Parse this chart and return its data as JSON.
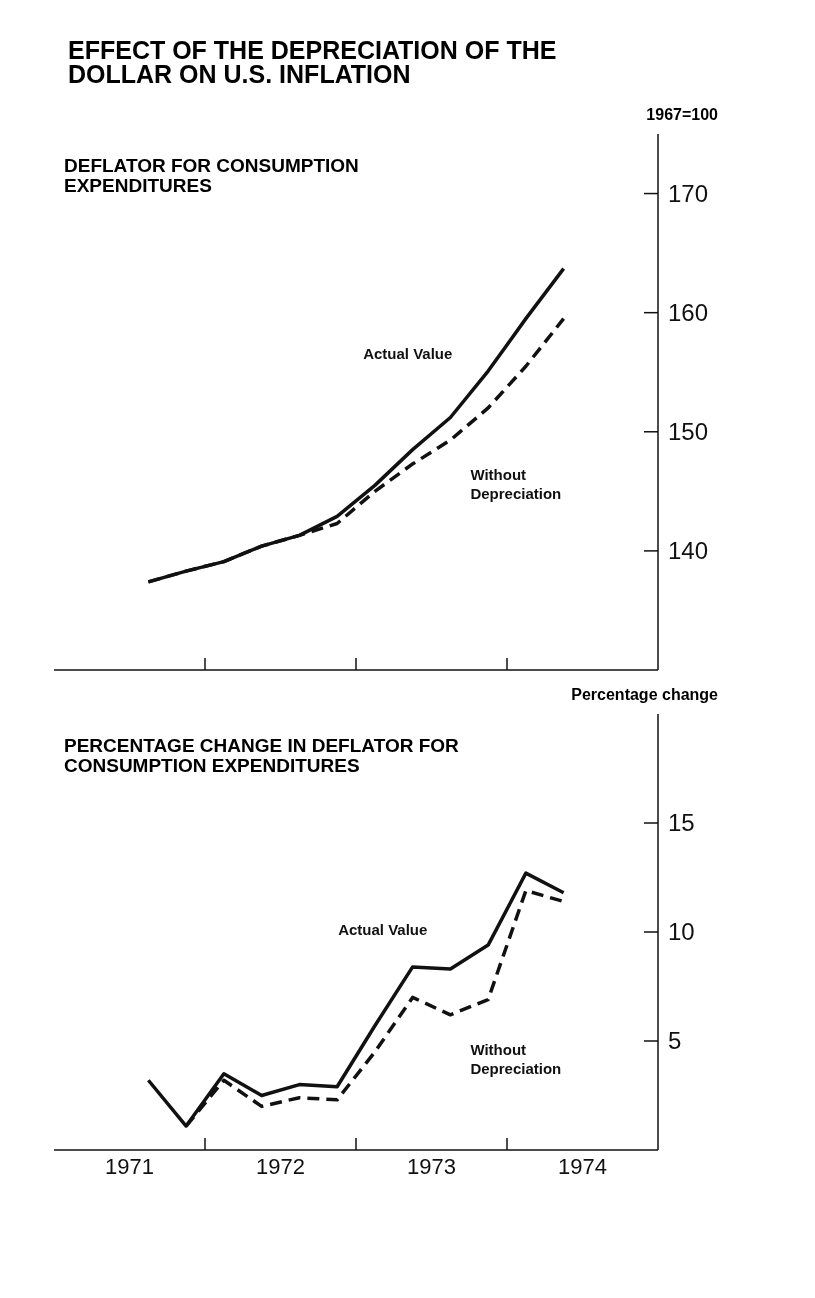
{
  "chart_data": [
    {
      "type": "line",
      "title": "EFFECT OF THE DEPRECIATION OF THE DOLLAR ON U.S. INFLATION",
      "subtitle": "DEFLATOR FOR CONSUMPTION EXPENDITURES",
      "ylabel": "1967=100",
      "x": [
        1971.625,
        1971.875,
        1972.125,
        1972.375,
        1972.625,
        1972.875,
        1973.125,
        1973.375,
        1973.625,
        1973.875,
        1974.125,
        1974.375
      ],
      "series": [
        {
          "name": "Actual Value",
          "color": "#111111",
          "line_style": "solid",
          "values": [
            137.4,
            138.3,
            139.1,
            140.4,
            141.3,
            142.9,
            145.5,
            148.5,
            151.2,
            155.1,
            159.5,
            163.7
          ]
        },
        {
          "name": "Without Depreciation",
          "color": "#111111",
          "line_style": "dashed",
          "values": [
            137.4,
            138.3,
            139.1,
            140.4,
            141.3,
            142.3,
            145.0,
            147.3,
            149.3,
            152.0,
            155.5,
            159.5
          ]
        }
      ],
      "xlim": [
        1971,
        1975
      ],
      "xticks": [
        {
          "value": 1972,
          "label": null
        },
        {
          "value": 1973,
          "label": null
        },
        {
          "value": 1974,
          "label": null
        }
      ],
      "ylim": [
        130,
        175
      ],
      "yticks": [
        140,
        150,
        160,
        170
      ],
      "tick_labels": "y"
    },
    {
      "type": "line",
      "title": "PERCENTAGE CHANGE IN DEFLATOR FOR CONSUMPTION EXPENDITURES",
      "ylabel": "Percentage change",
      "x": [
        1971.625,
        1971.875,
        1972.125,
        1972.375,
        1972.625,
        1972.875,
        1973.125,
        1973.375,
        1973.625,
        1973.875,
        1974.125,
        1974.375
      ],
      "series": [
        {
          "name": "Actual Value",
          "color": "#111111",
          "line_style": "solid",
          "values": [
            3.2,
            1.1,
            3.5,
            2.5,
            3.0,
            2.9,
            5.7,
            8.4,
            8.3,
            9.4,
            12.7,
            11.8
          ]
        },
        {
          "name": "Without Depreciation",
          "color": "#111111",
          "line_style": "dashed",
          "values": [
            null,
            1.1,
            3.2,
            2.0,
            2.4,
            2.3,
            4.5,
            7.0,
            6.2,
            6.9,
            11.9,
            11.4
          ]
        }
      ],
      "xlim": [
        1971,
        1975
      ],
      "xticks": [
        {
          "value": 1971.5,
          "label": "1971"
        },
        {
          "value": 1972,
          "label": null
        },
        {
          "value": 1972.5,
          "label": "1972"
        },
        {
          "value": 1973,
          "label": null
        },
        {
          "value": 1973.5,
          "label": "1973"
        },
        {
          "value": 1974,
          "label": null
        },
        {
          "value": 1974.5,
          "label": "1974"
        }
      ],
      "ylim": [
        0,
        20
      ],
      "yticks": [
        5,
        10,
        15
      ]
    }
  ]
}
